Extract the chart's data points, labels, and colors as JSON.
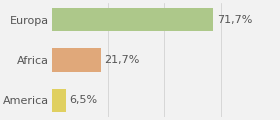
{
  "categories": [
    "America",
    "Africa",
    "Europa"
  ],
  "values": [
    6.5,
    21.7,
    71.7
  ],
  "labels": [
    "6,5%",
    "21,7%",
    "71,7%"
  ],
  "bar_colors": [
    "#e0d060",
    "#e0a87a",
    "#adc88a"
  ],
  "background_color": "#f2f2f2",
  "xlim": [
    0,
    100
  ],
  "bar_height": 0.58,
  "label_fontsize": 8.0,
  "tick_fontsize": 8.0,
  "grid_lines": [
    25,
    50,
    75,
    100
  ]
}
